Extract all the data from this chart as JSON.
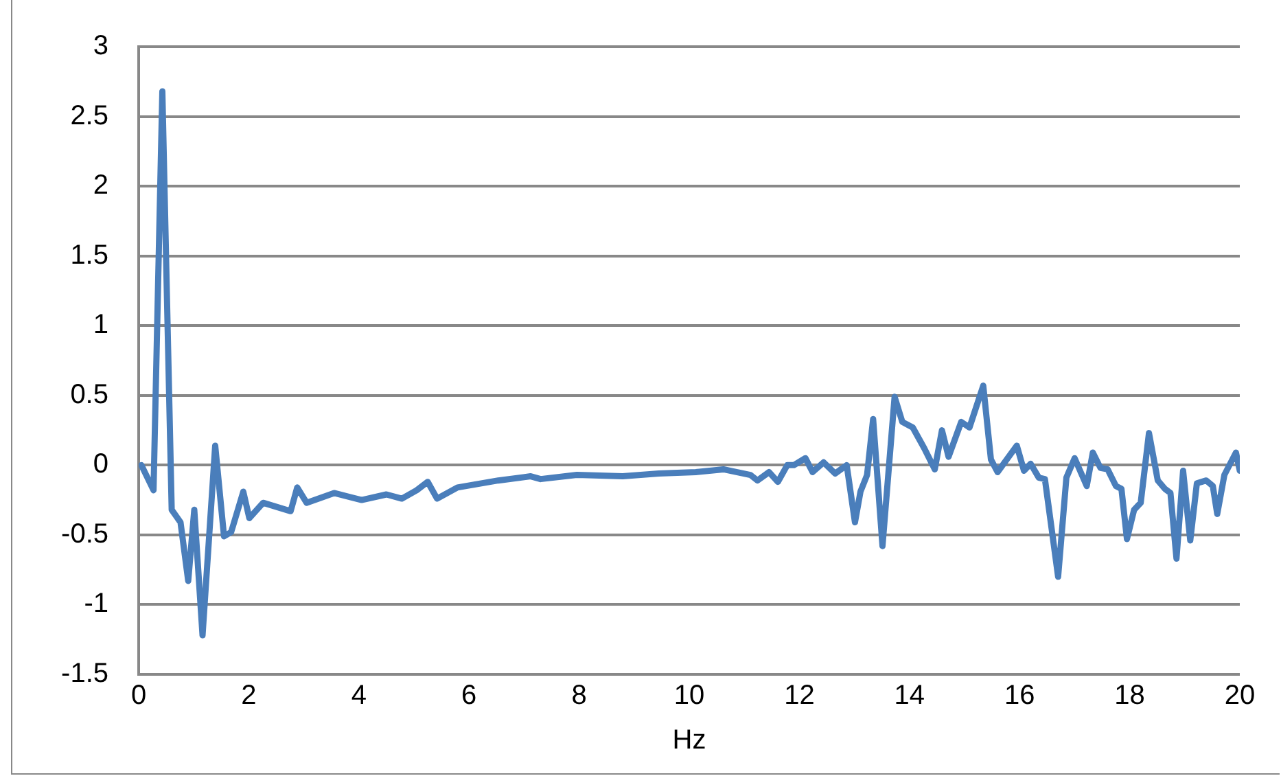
{
  "chart_data": {
    "type": "line",
    "xlabel": "Hz",
    "xlim": [
      0,
      20
    ],
    "xticks": [
      0,
      2,
      4,
      6,
      8,
      10,
      12,
      14,
      16,
      18,
      20
    ],
    "ylim": [
      -1.5,
      3
    ],
    "yticks": [
      -1.5,
      -1,
      -0.5,
      0,
      0.5,
      1,
      1.5,
      2,
      2.5,
      3
    ],
    "grid": "y",
    "legend": false,
    "marker": "none",
    "line_style": "solid",
    "series": [
      {
        "color": "#4a7ebb",
        "x": [
          0.05,
          0.27,
          0.43,
          0.6,
          0.76,
          0.9,
          1.01,
          1.16,
          1.39,
          1.55,
          1.68,
          1.9,
          2.01,
          2.26,
          2.76,
          2.88,
          3.05,
          3.55,
          4.05,
          4.5,
          4.78,
          5.05,
          5.25,
          5.42,
          5.79,
          6.53,
          7.12,
          7.3,
          7.96,
          8.79,
          9.45,
          10.12,
          10.62,
          11.11,
          11.24,
          11.45,
          11.61,
          11.78,
          11.9,
          12.11,
          12.24,
          12.44,
          12.65,
          12.86,
          13.01,
          13.11,
          13.23,
          13.34,
          13.51,
          13.73,
          13.87,
          14.06,
          14.27,
          14.46,
          14.59,
          14.71,
          14.94,
          15.09,
          15.34,
          15.48,
          15.6,
          15.95,
          16.08,
          16.2,
          16.35,
          16.46,
          16.7,
          16.85,
          17.0,
          17.22,
          17.33,
          17.47,
          17.6,
          17.75,
          17.85,
          17.95,
          18.08,
          18.2,
          18.35,
          18.51,
          18.64,
          18.74,
          18.85,
          18.97,
          19.1,
          19.22,
          19.39,
          19.51,
          19.59,
          19.72,
          19.93,
          20.0
        ],
        "values": [
          0.0,
          -0.18,
          2.68,
          -0.32,
          -0.41,
          -0.83,
          -0.32,
          -1.22,
          0.14,
          -0.51,
          -0.48,
          -0.19,
          -0.38,
          -0.27,
          -0.33,
          -0.16,
          -0.27,
          -0.2,
          -0.25,
          -0.21,
          -0.24,
          -0.18,
          -0.12,
          -0.24,
          -0.16,
          -0.11,
          -0.08,
          -0.1,
          -0.07,
          -0.08,
          -0.06,
          -0.05,
          -0.03,
          -0.07,
          -0.11,
          -0.05,
          -0.12,
          0.0,
          0.0,
          0.05,
          -0.05,
          0.02,
          -0.06,
          0.0,
          -0.41,
          -0.19,
          -0.07,
          0.33,
          -0.58,
          0.49,
          0.31,
          0.27,
          0.12,
          -0.03,
          0.25,
          0.06,
          0.31,
          0.27,
          0.57,
          0.04,
          -0.05,
          0.14,
          -0.04,
          0.01,
          -0.09,
          -0.1,
          -0.8,
          -0.09,
          0.05,
          -0.15,
          0.09,
          -0.02,
          -0.03,
          -0.15,
          -0.17,
          -0.53,
          -0.32,
          -0.27,
          0.23,
          -0.11,
          -0.17,
          -0.2,
          -0.67,
          -0.04,
          -0.54,
          -0.13,
          -0.11,
          -0.15,
          -0.35,
          -0.07,
          0.09,
          -0.04
        ]
      }
    ]
  }
}
